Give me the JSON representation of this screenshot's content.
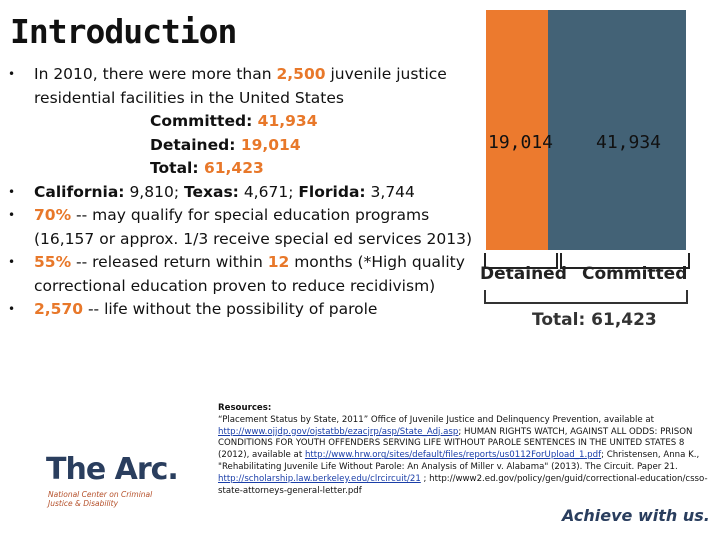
{
  "title": "Introduction",
  "bullets": {
    "b1_a": "In 2010, there were more than ",
    "b1_num": "2,500",
    "b1_b": " juvenile justice residential facilities in the United States",
    "committed_label": "Committed: ",
    "committed_value": "41,934",
    "detained_label": "Detained: ",
    "detained_value": "19,014",
    "total_label": "Total: ",
    "total_value": "61,423",
    "b2": "California: 9,810; Texas: 4,671; Florida: 3,744",
    "b2_ca": "California:",
    "b2_ca_v": " 9,810; ",
    "b2_tx": "Texas:",
    "b2_tx_v": " 4,671; ",
    "b2_fl": "Florida:",
    "b2_fl_v": " 3,744",
    "b3_num": "70%",
    "b3_text": " -- may qualify for special education programs (16,157 or approx. 1/3 receive special ed services 2013)",
    "b4_num": "55%",
    "b4_a": " -- released return within ",
    "b4_num2": "12",
    "b4_b": " months (*High quality correctional education proven to reduce recidivism)",
    "b5_num": "2,570",
    "b5_text": " -- life without the possibility of parole"
  },
  "chart_data": {
    "type": "bar",
    "categories": [
      "Detained",
      "Committed"
    ],
    "values": [
      19014,
      41934
    ],
    "value_labels": [
      "19,014",
      "41,934"
    ],
    "total_label": "Total: 61,423",
    "colors": [
      "#ec7a2e",
      "#436276"
    ]
  },
  "resources": {
    "heading": "Resources:",
    "l1": "“Placement Status by State, 2011” Office of Juvenile Justice and Delinquency Prevention, available at",
    "link1": "http://www.ojjdp.gov/ojstatbb/ezacjrp/asp/State_Adj.asp",
    "l2": "; HUMAN RIGHTS WATCH, AGAINST ALL ODDS: PRISON CONDITIONS FOR YOUTH OFFENDERS SERVING LIFE WITHOUT PAROLE SENTENCES IN THE UNITED STATES 8 (2012), available at ",
    "link2": "http://www.hrw.org/sites/default/files/reports/us0112ForUpload_1.pdf",
    "l3": "; Christensen, Anna K., \"Rehabilitating Juvenile Life Without Parole: An Analysis of Miller v. Alabama\" (2013). The Circuit. Paper 21. ",
    "link3": "http://scholarship.law.berkeley.edu/clrcircuit/21",
    "l4": " ; http://www2.ed.gov/policy/gen/guid/correctional-education/csso-state-attorneys-general-letter.pdf"
  },
  "logo": {
    "wordmark": "The Arc.",
    "subtitle": "National Center on Criminal Justice & Disability"
  },
  "tagline": "Achieve with us."
}
